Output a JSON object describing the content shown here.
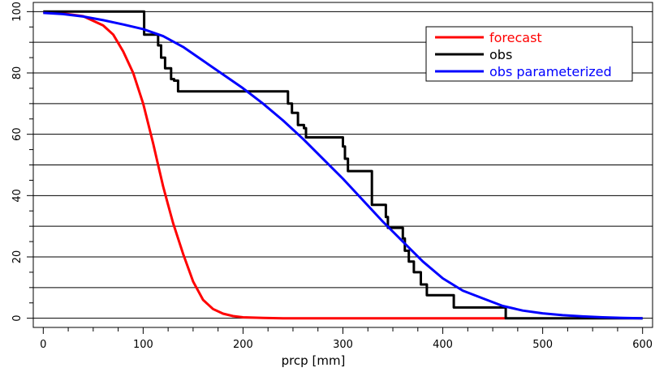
{
  "chart_data": {
    "type": "line",
    "title": "",
    "xlabel": "prcp [mm]",
    "ylabel": "",
    "xlim": [
      -10,
      610
    ],
    "ylim": [
      -3,
      103
    ],
    "xticks": [
      0,
      100,
      200,
      300,
      400,
      500,
      600
    ],
    "yticks": [
      0,
      20,
      40,
      60,
      80,
      100
    ],
    "grid": "horizontal",
    "gridlines_y": [
      0,
      10,
      20,
      30,
      40,
      50,
      60,
      70,
      80,
      90,
      100
    ],
    "legend_position": "top-right",
    "series": [
      {
        "name": "forecast",
        "color": "#ff0000",
        "style": "line",
        "x": [
          0,
          20,
          40,
          60,
          70,
          80,
          90,
          100,
          110,
          115,
          120,
          125,
          130,
          140,
          150,
          160,
          170,
          180,
          190,
          200,
          220,
          240,
          260,
          300,
          400,
          463
        ],
        "y": [
          99.8,
          99.4,
          98.5,
          95.5,
          92.5,
          87,
          80,
          70,
          57,
          50,
          43,
          37,
          31,
          21,
          12,
          6,
          3,
          1.5,
          0.7,
          0.3,
          0.1,
          0,
          0,
          0,
          0,
          0
        ]
      },
      {
        "name": "obs",
        "color": "#000000",
        "style": "step",
        "x": [
          0,
          101,
          101,
          115,
          115,
          118,
          118,
          122,
          122,
          128,
          128,
          131,
          131,
          135,
          135,
          161,
          161,
          245,
          245,
          249,
          249,
          255,
          255,
          261,
          261,
          263,
          263,
          265,
          265,
          300,
          300,
          302,
          302,
          305,
          305,
          308,
          308,
          329,
          329,
          336,
          336,
          343,
          343,
          345,
          345,
          349,
          349,
          360,
          360,
          362,
          362,
          366,
          366,
          371,
          371,
          378,
          378,
          384,
          384,
          411,
          411,
          463,
          463,
          600
        ],
        "y": [
          100,
          100,
          92.5,
          92.5,
          89,
          89,
          85,
          85,
          81.5,
          81.5,
          78,
          78,
          77.5,
          77.5,
          74,
          74,
          74,
          74,
          70,
          70,
          67,
          67,
          63,
          63,
          62,
          62,
          59,
          59,
          59,
          59,
          56,
          56,
          52,
          52,
          48,
          48,
          48,
          48,
          37,
          37,
          37,
          37,
          33,
          33,
          29.5,
          29.5,
          29.5,
          29.5,
          26,
          26,
          22,
          22,
          18.5,
          18.5,
          15,
          15,
          11,
          11,
          7.5,
          7.5,
          3.5,
          3.5,
          0,
          0
        ]
      },
      {
        "name": "obs parameterized",
        "color": "#0000ff",
        "style": "line",
        "x": [
          0,
          20,
          40,
          60,
          80,
          100,
          120,
          140,
          160,
          180,
          200,
          220,
          240,
          260,
          280,
          300,
          320,
          340,
          360,
          380,
          400,
          420,
          440,
          460,
          480,
          500,
          520,
          540,
          560,
          580,
          600
        ],
        "y": [
          99.6,
          99.2,
          98.4,
          97.2,
          95.8,
          94.3,
          92,
          88.5,
          84,
          79.5,
          75,
          70,
          64.5,
          58.5,
          52,
          45.5,
          38.5,
          31.5,
          25,
          18.5,
          13,
          9,
          6.5,
          4,
          2.5,
          1.6,
          1,
          0.6,
          0.3,
          0.1,
          0
        ]
      }
    ]
  }
}
